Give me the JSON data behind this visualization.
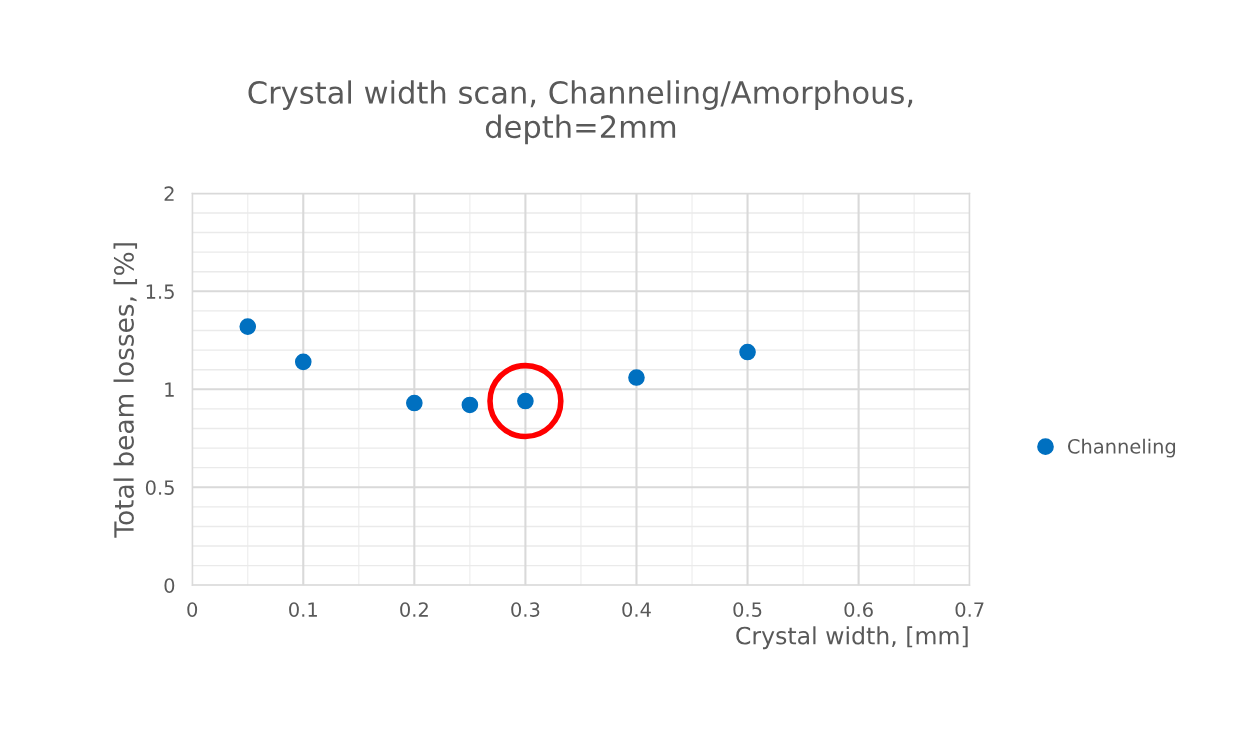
{
  "chart_data": {
    "type": "scatter",
    "title": "Crystal width scan, Channeling/Amorphous,\ndepth=2mm",
    "xlabel": "Crystal width, [mm]",
    "ylabel": "Total beam losses, [%]",
    "series": [
      {
        "name": "Channeling",
        "color": "#0070c0",
        "x": [
          0.05,
          0.1,
          0.2,
          0.25,
          0.3,
          0.4,
          0.5
        ],
        "values": [
          1.32,
          1.14,
          0.93,
          0.92,
          0.94,
          1.06,
          1.19
        ]
      },
      {
        "color": "#ff0000",
        "x": [
          0.3
        ],
        "values": [
          0.94
        ],
        "marker": "circle"
      }
    ],
    "xlim": [
      0,
      0.7
    ],
    "xticks": [
      0,
      0.1,
      0.2,
      0.3,
      0.4,
      0.5,
      0.6,
      0.7
    ],
    "ylim": [
      0,
      2
    ],
    "yticks": [
      0,
      0.5,
      1,
      1.5,
      2
    ],
    "grid": true,
    "legend": "right",
    "marker": "circle"
  }
}
